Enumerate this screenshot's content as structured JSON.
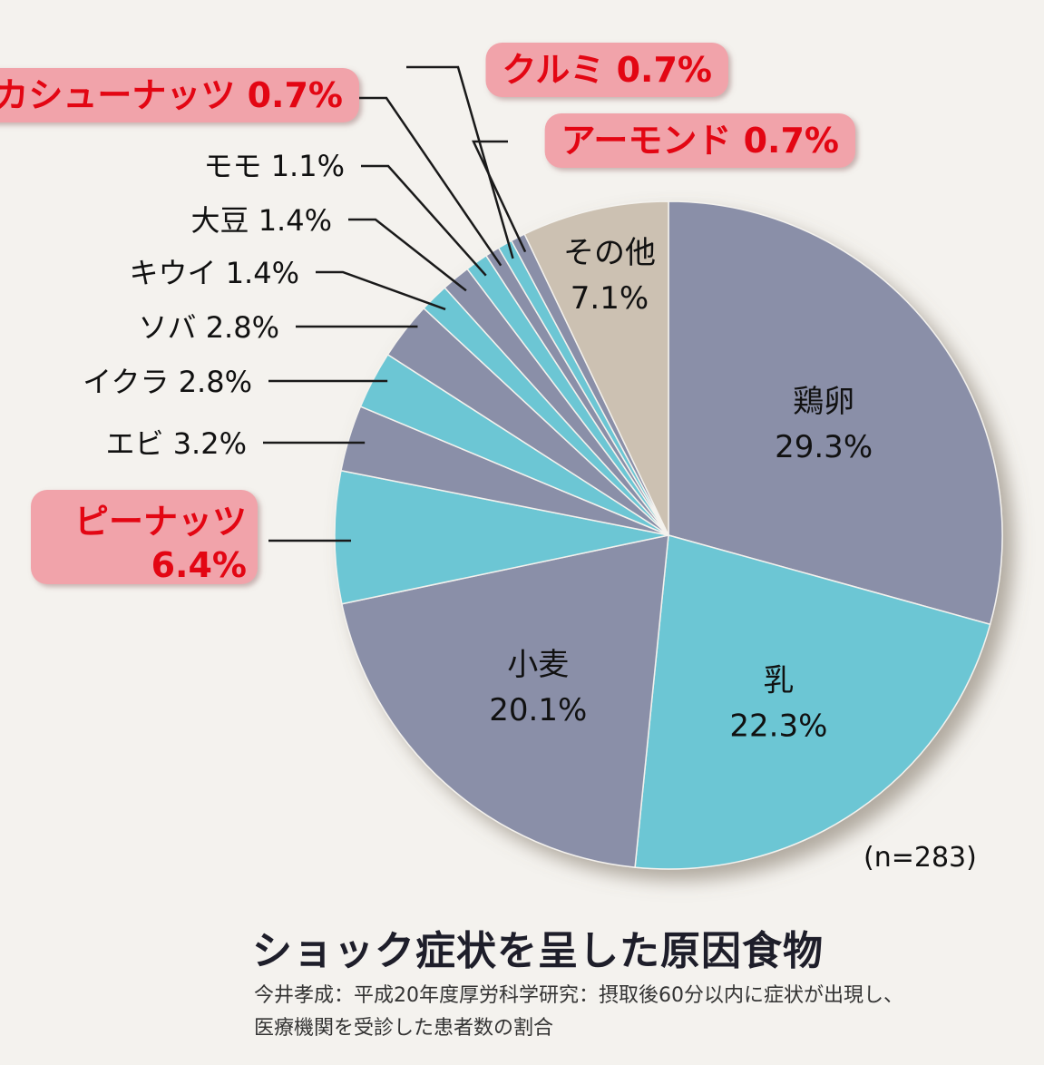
{
  "chart_data": {
    "type": "pie",
    "title": "ショック症状を呈した原因食物",
    "n_label": "(n=283)",
    "source_line1": "今井孝成：平成20年度厚労科学研究：摂取後60分以内に症状が出現し、",
    "source_line2": "医療機関を受診した患者数の割合",
    "slices": [
      {
        "name": "鶏卵",
        "value_label": "29.3%",
        "value": 29.3,
        "color": "#8a8fa8",
        "highlight": false
      },
      {
        "name": "乳",
        "value_label": "22.3%",
        "value": 22.3,
        "color": "#6cc6d4",
        "highlight": false
      },
      {
        "name": "小麦",
        "value_label": "20.1%",
        "value": 20.1,
        "color": "#8a8fa8",
        "highlight": false
      },
      {
        "name": "ピーナッツ",
        "value_label": "6.4%",
        "value": 6.4,
        "color": "#6cc6d4",
        "highlight": true
      },
      {
        "name": "エビ",
        "value_label": "3.2%",
        "value": 3.2,
        "color": "#8a8fa8",
        "highlight": false
      },
      {
        "name": "イクラ",
        "value_label": "2.8%",
        "value": 2.8,
        "color": "#6cc6d4",
        "highlight": false
      },
      {
        "name": "ソバ",
        "value_label": "2.8%",
        "value": 2.8,
        "color": "#8a8fa8",
        "highlight": false
      },
      {
        "name": "キウイ",
        "value_label": "1.4%",
        "value": 1.4,
        "color": "#6cc6d4",
        "highlight": false
      },
      {
        "name": "大豆",
        "value_label": "1.4%",
        "value": 1.4,
        "color": "#8a8fa8",
        "highlight": false
      },
      {
        "name": "モモ",
        "value_label": "1.1%",
        "value": 1.1,
        "color": "#6cc6d4",
        "highlight": false
      },
      {
        "name": "カシューナッツ",
        "value_label": "0.7%",
        "value": 0.7,
        "color": "#8a8fa8",
        "highlight": true
      },
      {
        "name": "クルミ",
        "value_label": "0.7%",
        "value": 0.7,
        "color": "#6cc6d4",
        "highlight": true
      },
      {
        "name": "アーモンド",
        "value_label": "0.7%",
        "value": 0.7,
        "color": "#8a8fa8",
        "highlight": true
      },
      {
        "name": "その他",
        "value_label": "7.1%",
        "value": 7.1,
        "color": "#ccc1b2",
        "highlight": false
      }
    ],
    "highlight_box_color": "#f1a3aa",
    "highlight_text_color": "#e30613"
  }
}
